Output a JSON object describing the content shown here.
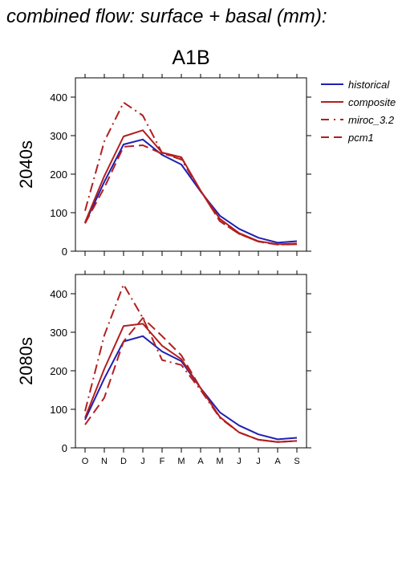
{
  "page_title": "combined flow: surface + basal (mm):",
  "scenario": "A1B",
  "colors": {
    "historical": "#1f1fb4",
    "composite": "#b21f1f",
    "miroc_3.2": "#b21f1f",
    "pcm1": "#b21f1f"
  },
  "legend": [
    {
      "name": "historical",
      "style": "solid",
      "color": "#1f1fb4"
    },
    {
      "name": "composite",
      "style": "solid",
      "color": "#b21f1f"
    },
    {
      "name": "miroc_3.2",
      "style": "dashdot",
      "color": "#b21f1f"
    },
    {
      "name": "pcm1",
      "style": "dashed",
      "color": "#b21f1f"
    }
  ],
  "chart_data": [
    {
      "type": "line",
      "title": "A1B",
      "ylabel": "2040s",
      "ylim": [
        0,
        450
      ],
      "yticks": [
        0,
        100,
        200,
        300,
        400
      ],
      "categories": [
        "O",
        "N",
        "D",
        "J",
        "F",
        "M",
        "A",
        "M",
        "J",
        "J",
        "A",
        "S"
      ],
      "series": [
        {
          "name": "historical",
          "style": "solid",
          "values": [
            73,
            180,
            277,
            290,
            250,
            225,
            155,
            92,
            58,
            35,
            22,
            26
          ]
        },
        {
          "name": "composite",
          "style": "solid",
          "values": [
            75,
            195,
            298,
            314,
            256,
            244,
            157,
            84,
            47,
            26,
            18,
            20
          ]
        },
        {
          "name": "miroc_3.2",
          "style": "dashdot",
          "values": [
            105,
            285,
            386,
            352,
            255,
            238,
            157,
            78,
            45,
            25,
            17,
            18
          ]
        },
        {
          "name": "pcm1",
          "style": "dashed",
          "values": [
            72,
            165,
            271,
            275,
            253,
            243,
            157,
            78,
            45,
            25,
            17,
            18
          ]
        }
      ]
    },
    {
      "type": "line",
      "title": "",
      "ylabel": "2080s",
      "ylim": [
        0,
        450
      ],
      "yticks": [
        0,
        100,
        200,
        300,
        400
      ],
      "categories": [
        "O",
        "N",
        "D",
        "J",
        "F",
        "M",
        "A",
        "M",
        "J",
        "J",
        "A",
        "S"
      ],
      "series": [
        {
          "name": "historical",
          "style": "solid",
          "values": [
            73,
            180,
            276,
            290,
            250,
            225,
            155,
            92,
            58,
            35,
            22,
            26
          ]
        },
        {
          "name": "composite",
          "style": "solid",
          "values": [
            78,
            205,
            316,
            322,
            265,
            230,
            155,
            80,
            40,
            21,
            15,
            18
          ]
        },
        {
          "name": "miroc_3.2",
          "style": "dashdot",
          "values": [
            95,
            292,
            424,
            337,
            228,
            215,
            150,
            78,
            40,
            21,
            15,
            18
          ]
        },
        {
          "name": "pcm1",
          "style": "dashed",
          "values": [
            60,
            130,
            276,
            337,
            290,
            240,
            155,
            80,
            40,
            21,
            15,
            18
          ]
        }
      ]
    }
  ]
}
